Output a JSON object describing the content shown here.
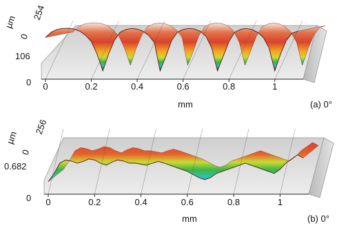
{
  "chart_data": [
    {
      "type": "area",
      "panel_label": "(a) 0°",
      "xlabel": "mm",
      "zlabel": "µm",
      "x_ticks": [
        "0",
        "0.2",
        "0.4",
        "0.6",
        "0.8",
        "1"
      ],
      "z_ticks": [
        "254",
        "0"
      ],
      "y_depth_labels": [
        "106",
        "0"
      ],
      "xlim": [
        0,
        1.1
      ],
      "zlim": [
        0,
        254
      ],
      "x": [
        0.0,
        0.025,
        0.05,
        0.075,
        0.1,
        0.125,
        0.15,
        0.175,
        0.2,
        0.225,
        0.25,
        0.275,
        0.3,
        0.325,
        0.35,
        0.375,
        0.4,
        0.425,
        0.45,
        0.475,
        0.5,
        0.525,
        0.55,
        0.575,
        0.6,
        0.625,
        0.65,
        0.675,
        0.7,
        0.725,
        0.75,
        0.775,
        0.8,
        0.825,
        0.85,
        0.875,
        0.9,
        0.925,
        0.95,
        0.975,
        1.0,
        1.025,
        1.05,
        1.075,
        1.1
      ],
      "profile": [
        200,
        225,
        238,
        243,
        244,
        240,
        230,
        210,
        180,
        120,
        40,
        120,
        185,
        225,
        238,
        243,
        240,
        230,
        210,
        175,
        40,
        110,
        185,
        225,
        238,
        243,
        240,
        230,
        205,
        150,
        40,
        110,
        180,
        225,
        238,
        243,
        238,
        225,
        200,
        150,
        40,
        120,
        185,
        220,
        230
      ],
      "colormap": [
        "#1a2fb0",
        "#1e90ff",
        "#2ec4b6",
        "#3cb44b",
        "#c8dc32",
        "#f5a623",
        "#e8612c",
        "#d8432d",
        "#ffffff"
      ],
      "grid": true
    },
    {
      "type": "area",
      "panel_label": "(b) 0°",
      "xlabel": "mm",
      "zlabel": "µm",
      "x_ticks": [
        "0",
        "0.2",
        "0.4",
        "0.6",
        "0.8",
        "1"
      ],
      "z_ticks": [
        "256",
        "0"
      ],
      "y_depth_labels": [
        "0.682",
        "0"
      ],
      "xlim": [
        0,
        1.1
      ],
      "zlim": [
        0,
        256
      ],
      "x": [
        0.0,
        0.025,
        0.05,
        0.075,
        0.1,
        0.125,
        0.15,
        0.175,
        0.2,
        0.225,
        0.25,
        0.275,
        0.3,
        0.325,
        0.35,
        0.375,
        0.4,
        0.425,
        0.45,
        0.475,
        0.5,
        0.525,
        0.55,
        0.575,
        0.6,
        0.625,
        0.65,
        0.675,
        0.7,
        0.725,
        0.75,
        0.775,
        0.8,
        0.825,
        0.85,
        0.875,
        0.9,
        0.925,
        0.95,
        0.975,
        1.0,
        1.025,
        1.05,
        1.075,
        1.1
      ],
      "profile": [
        60,
        100,
        150,
        165,
        160,
        150,
        158,
        170,
        165,
        150,
        140,
        155,
        165,
        160,
        150,
        150,
        145,
        140,
        150,
        158,
        150,
        140,
        130,
        120,
        110,
        95,
        80,
        70,
        80,
        100,
        110,
        120,
        130,
        140,
        150,
        140,
        130,
        120,
        110,
        100,
        120,
        150,
        170,
        190,
        175
      ],
      "colormap": [
        "#1e90ff",
        "#2ec4b6",
        "#3cb44b",
        "#c8dc32",
        "#f5a623",
        "#e8612c",
        "#d8432d",
        "#ffffff"
      ],
      "grid": true
    }
  ]
}
